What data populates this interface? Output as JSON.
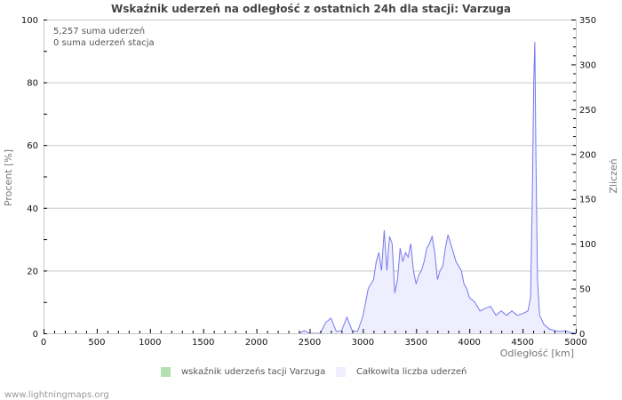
{
  "title": "Wskaźnik uderzeń na odległość z ostatnich 24h dla stacji: Varzuga",
  "notes": {
    "total_strikes": "5,257 suma uderzeń",
    "station_strikes": "0 suma uderzeń stacja"
  },
  "axes": {
    "left_title": "Procent   [%]",
    "right_title": "Zliczeń",
    "x_title": "Odległość   [km]"
  },
  "legend": {
    "station": "wskaźnik uderzeńs tacji Varzuga",
    "total": "Całkowita liczba uderzeń"
  },
  "colors": {
    "station": "#b3e0b3",
    "total_fill": "#eeeeff",
    "total_line": "#7777ee",
    "grid": "#c8c8c8"
  },
  "footer": "www.lightningmaps.org",
  "chart_data": {
    "type": "area",
    "title": "Wskaźnik uderzeń na odległość z ostatnich 24h dla stacji: Varzuga",
    "xlabel": "Odległość [km]",
    "ylabel_left": "Procent [%]",
    "ylabel_right": "Zliczeń",
    "xlim": [
      0,
      5000
    ],
    "ylim_left": [
      0,
      100
    ],
    "ylim_right": [
      0,
      350
    ],
    "x_ticks": [
      0,
      500,
      1000,
      1500,
      2000,
      2500,
      3000,
      3500,
      4000,
      4500,
      5000
    ],
    "y_left_ticks": [
      0,
      20,
      40,
      60,
      80,
      100
    ],
    "y_right_ticks": [
      0,
      50,
      100,
      150,
      200,
      250,
      300,
      350
    ],
    "grid": true,
    "legend_position": "bottom",
    "series": [
      {
        "name": "wskaźnik uderzeńs tacji Varzuga",
        "axis": "left",
        "x": [],
        "values": []
      },
      {
        "name": "Całkowita liczba uderzeń",
        "axis": "right",
        "x": [
          2400,
          2450,
          2500,
          2550,
          2600,
          2650,
          2700,
          2750,
          2800,
          2850,
          2900,
          2950,
          3000,
          3050,
          3100,
          3125,
          3150,
          3175,
          3200,
          3225,
          3250,
          3275,
          3300,
          3325,
          3350,
          3375,
          3400,
          3425,
          3450,
          3475,
          3500,
          3525,
          3550,
          3575,
          3600,
          3625,
          3650,
          3675,
          3700,
          3725,
          3750,
          3775,
          3800,
          3825,
          3850,
          3875,
          3900,
          3925,
          3950,
          3975,
          4000,
          4050,
          4100,
          4150,
          4200,
          4250,
          4300,
          4350,
          4400,
          4450,
          4500,
          4550,
          4575,
          4590,
          4605,
          4615,
          4625,
          4640,
          4660,
          4700,
          4750,
          4800,
          4850,
          4900,
          4950,
          5000
        ],
        "values": [
          0,
          3,
          0,
          0,
          0,
          12,
          17,
          2,
          3,
          18,
          3,
          2,
          19,
          50,
          60,
          80,
          90,
          70,
          115,
          70,
          108,
          100,
          45,
          60,
          95,
          80,
          90,
          85,
          100,
          70,
          55,
          65,
          70,
          80,
          95,
          100,
          108,
          90,
          60,
          70,
          75,
          95,
          110,
          100,
          90,
          80,
          75,
          70,
          55,
          50,
          40,
          35,
          25,
          28,
          30,
          20,
          25,
          20,
          25,
          20,
          22,
          25,
          40,
          140,
          280,
          325,
          200,
          60,
          20,
          10,
          5,
          3,
          2,
          3,
          1,
          0
        ]
      }
    ]
  }
}
